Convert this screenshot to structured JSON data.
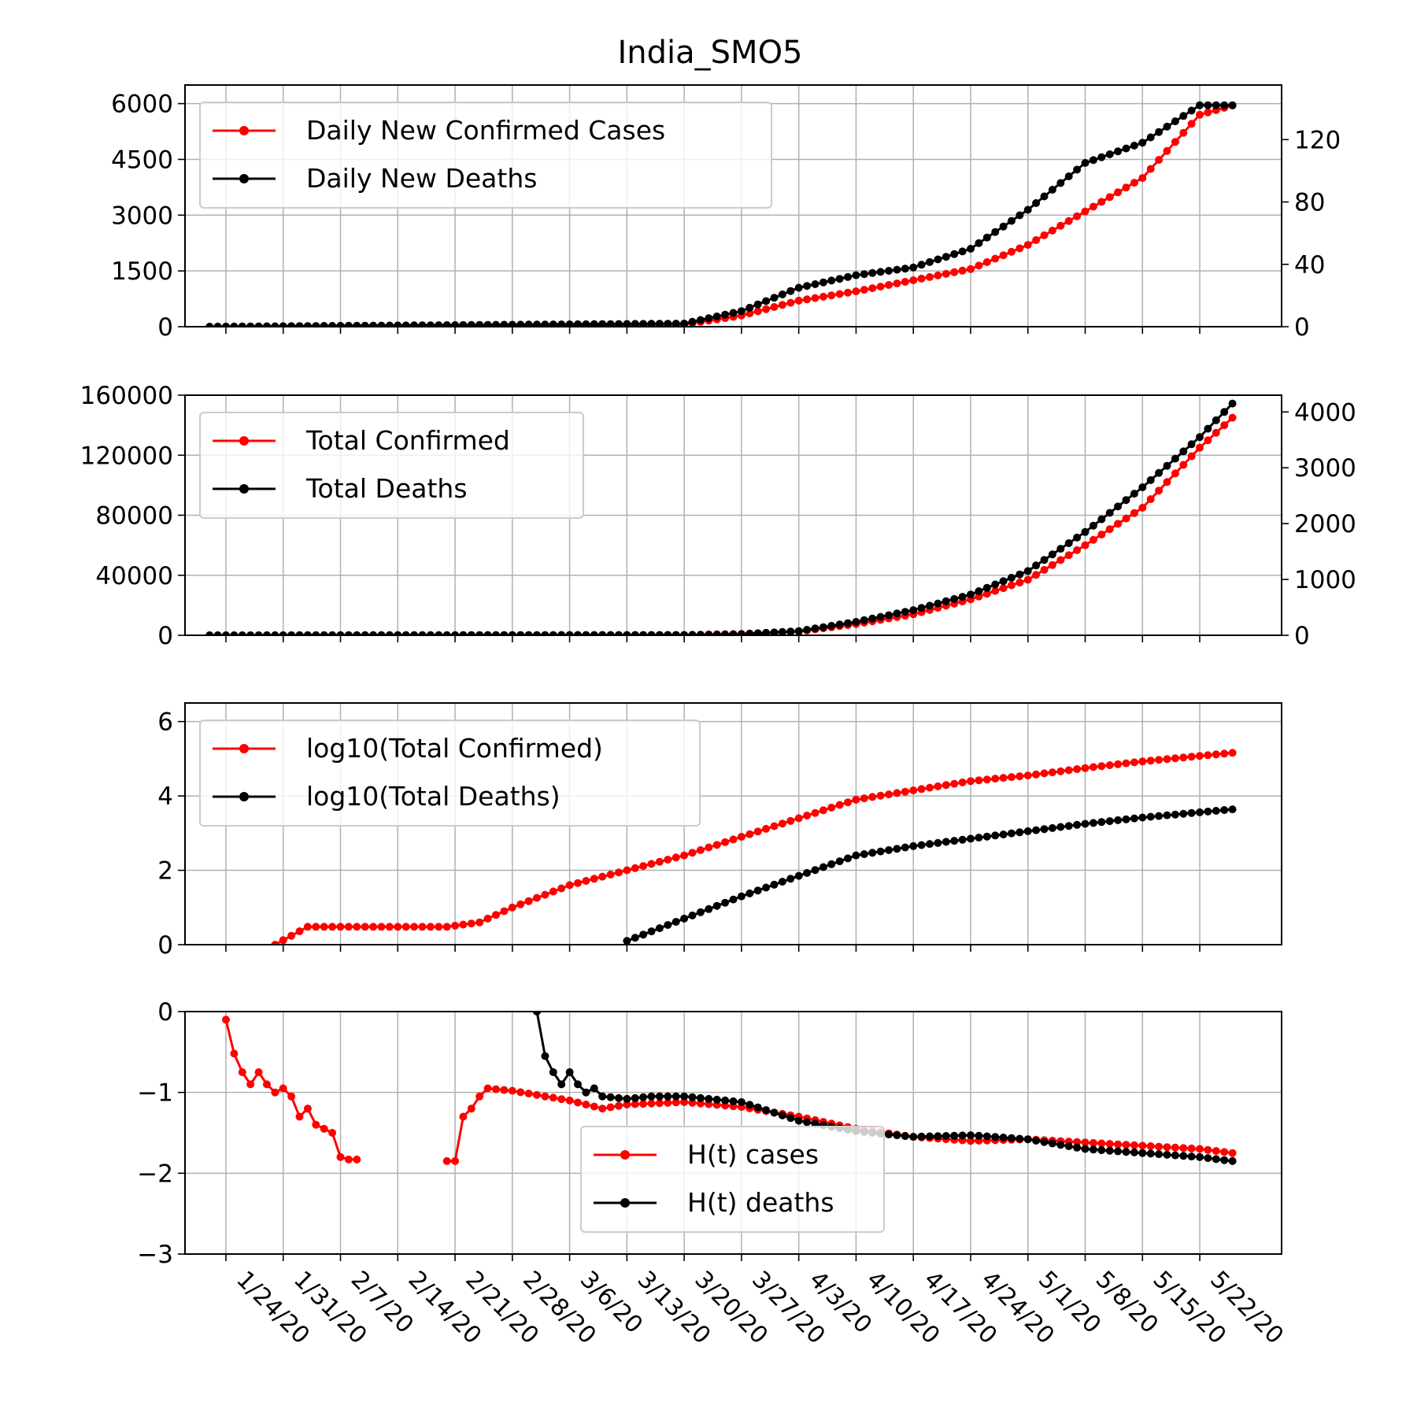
{
  "figure": {
    "title": "India_SMO5",
    "date_ticks": [
      "1/24/20",
      "1/31/20",
      "2/7/20",
      "2/14/20",
      "2/21/20",
      "2/28/20",
      "3/6/20",
      "3/13/20",
      "3/20/20",
      "3/27/20",
      "4/3/20",
      "4/10/20",
      "4/17/20",
      "4/24/20",
      "5/1/20",
      "5/8/20",
      "5/15/20",
      "5/22/20"
    ],
    "colors": {
      "cases": "#ff0000",
      "deaths": "#000000",
      "grid": "#b0b0b0"
    }
  },
  "chart_data": [
    {
      "type": "line",
      "title": "India_SMO5",
      "x_start": "1/22/20",
      "x_end": "5/26/20",
      "left_ylim": [
        0,
        6500
      ],
      "left_yticks": [
        "0",
        "1500",
        "3000",
        "4500",
        "6000"
      ],
      "right_ylim": [
        0,
        155
      ],
      "right_yticks": [
        "0",
        "40",
        "80",
        "120"
      ],
      "legend_position": "upper-left",
      "series": [
        {
          "name": "Daily New Confirmed Cases",
          "axis": "left",
          "color": "#ff0000",
          "points": [
            [
              "1/22/20",
              0
            ],
            [
              "3/20/20",
              60
            ],
            [
              "3/27/20",
              300
            ],
            [
              "4/3/20",
              700
            ],
            [
              "4/10/20",
              950
            ],
            [
              "4/17/20",
              1250
            ],
            [
              "4/24/20",
              1550
            ],
            [
              "5/1/20",
              2200
            ],
            [
              "5/8/20",
              3100
            ],
            [
              "5/15/20",
              4000
            ],
            [
              "5/22/20",
              5700
            ],
            [
              "5/26/20",
              5950
            ]
          ]
        },
        {
          "name": "Daily New Deaths",
          "axis": "right",
          "color": "#000000",
          "points": [
            [
              "1/22/20",
              0
            ],
            [
              "3/20/20",
              2
            ],
            [
              "3/27/20",
              10
            ],
            [
              "4/3/20",
              25
            ],
            [
              "4/10/20",
              33
            ],
            [
              "4/17/20",
              38
            ],
            [
              "4/24/20",
              50
            ],
            [
              "5/1/20",
              75
            ],
            [
              "5/8/20",
              105
            ],
            [
              "5/15/20",
              118
            ],
            [
              "5/22/20",
              142
            ],
            [
              "5/26/20",
              142
            ]
          ]
        }
      ]
    },
    {
      "type": "line",
      "left_ylim": [
        0,
        160000
      ],
      "left_yticks": [
        "0",
        "40000",
        "80000",
        "120000",
        "160000"
      ],
      "right_ylim": [
        0,
        4300
      ],
      "right_yticks": [
        "0",
        "1000",
        "2000",
        "3000",
        "4000"
      ],
      "legend_position": "upper-left",
      "series": [
        {
          "name": "Total Confirmed",
          "axis": "left",
          "color": "#ff0000",
          "points": [
            [
              "1/22/20",
              0
            ],
            [
              "3/20/20",
              250
            ],
            [
              "3/27/20",
              900
            ],
            [
              "4/3/20",
              2500
            ],
            [
              "4/10/20",
              7500
            ],
            [
              "4/17/20",
              14000
            ],
            [
              "4/24/20",
              24000
            ],
            [
              "5/1/20",
              37000
            ],
            [
              "5/8/20",
              60000
            ],
            [
              "5/15/20",
              85000
            ],
            [
              "5/22/20",
              125000
            ],
            [
              "5/26/20",
              145000
            ]
          ]
        },
        {
          "name": "Total Deaths",
          "axis": "right",
          "color": "#000000",
          "points": [
            [
              "1/22/20",
              0
            ],
            [
              "3/20/20",
              4
            ],
            [
              "3/27/20",
              20
            ],
            [
              "4/3/20",
              75
            ],
            [
              "4/10/20",
              240
            ],
            [
              "4/17/20",
              450
            ],
            [
              "4/24/20",
              730
            ],
            [
              "5/1/20",
              1150
            ],
            [
              "5/8/20",
              1850
            ],
            [
              "5/15/20",
              2650
            ],
            [
              "5/22/20",
              3550
            ],
            [
              "5/26/20",
              4150
            ]
          ]
        }
      ]
    },
    {
      "type": "line",
      "ylim": [
        0,
        6.5
      ],
      "yticks": [
        "0",
        "2",
        "4",
        "6"
      ],
      "legend_position": "upper-left",
      "series": [
        {
          "name": "log10(Total Confirmed)",
          "color": "#ff0000",
          "points": [
            [
              "1/30/20",
              0
            ],
            [
              "2/3/20",
              0.48
            ],
            [
              "2/20/20",
              0.48
            ],
            [
              "2/24/20",
              0.6
            ],
            [
              "2/28/20",
              1.0
            ],
            [
              "3/6/20",
              1.6
            ],
            [
              "3/13/20",
              2.0
            ],
            [
              "3/20/20",
              2.4
            ],
            [
              "3/27/20",
              2.9
            ],
            [
              "4/3/20",
              3.4
            ],
            [
              "4/10/20",
              3.9
            ],
            [
              "4/17/20",
              4.15
            ],
            [
              "4/24/20",
              4.4
            ],
            [
              "5/1/20",
              4.55
            ],
            [
              "5/8/20",
              4.75
            ],
            [
              "5/15/20",
              4.93
            ],
            [
              "5/26/20",
              5.16
            ]
          ]
        },
        {
          "name": "log10(Total Deaths)",
          "color": "#000000",
          "points": [
            [
              "3/13/20",
              0.1
            ],
            [
              "3/20/20",
              0.7
            ],
            [
              "3/27/20",
              1.3
            ],
            [
              "4/3/20",
              1.85
            ],
            [
              "4/10/20",
              2.4
            ],
            [
              "4/17/20",
              2.65
            ],
            [
              "4/24/20",
              2.85
            ],
            [
              "5/1/20",
              3.05
            ],
            [
              "5/8/20",
              3.25
            ],
            [
              "5/15/20",
              3.42
            ],
            [
              "5/26/20",
              3.64
            ]
          ]
        }
      ]
    },
    {
      "type": "line",
      "ylim": [
        -3,
        0
      ],
      "yticks": [
        "−3",
        "−2",
        "−1",
        "0"
      ],
      "legend_position": "lower-center",
      "series": [
        {
          "name": "H(t) cases",
          "color": "#ff0000",
          "segments": [
            [
              [
                "1/24/20",
                -0.1
              ],
              [
                "1/25/20",
                -0.52
              ],
              [
                "1/26/20",
                -0.75
              ],
              [
                "1/27/20",
                -0.9
              ],
              [
                "1/28/20",
                -0.75
              ],
              [
                "1/29/20",
                -0.9
              ],
              [
                "1/30/20",
                -1.0
              ],
              [
                "1/31/20",
                -0.95
              ],
              [
                "2/1/20",
                -1.05
              ],
              [
                "2/2/20",
                -1.3
              ],
              [
                "2/3/20",
                -1.2
              ],
              [
                "2/4/20",
                -1.4
              ],
              [
                "2/5/20",
                -1.45
              ],
              [
                "2/6/20",
                -1.5
              ],
              [
                "2/7/20",
                -1.8
              ],
              [
                "2/8/20",
                -1.83
              ],
              [
                "2/9/20",
                -1.83
              ]
            ],
            [
              [
                "2/20/20",
                -1.85
              ],
              [
                "2/21/20",
                -1.85
              ],
              [
                "2/22/20",
                -1.3
              ],
              [
                "2/23/20",
                -1.2
              ],
              [
                "2/24/20",
                -1.05
              ],
              [
                "2/25/20",
                -0.95
              ],
              [
                "2/28/20",
                -0.98
              ],
              [
                "3/6/20",
                -1.1
              ],
              [
                "3/10/20",
                -1.2
              ],
              [
                "3/13/20",
                -1.15
              ],
              [
                "3/20/20",
                -1.12
              ],
              [
                "3/27/20",
                -1.18
              ],
              [
                "4/3/20",
                -1.3
              ],
              [
                "4/10/20",
                -1.45
              ],
              [
                "4/17/20",
                -1.55
              ],
              [
                "4/24/20",
                -1.6
              ],
              [
                "5/1/20",
                -1.58
              ],
              [
                "5/8/20",
                -1.62
              ],
              [
                "5/15/20",
                -1.66
              ],
              [
                "5/22/20",
                -1.7
              ],
              [
                "5/26/20",
                -1.75
              ]
            ]
          ]
        },
        {
          "name": "H(t) deaths",
          "color": "#000000",
          "segments": [
            [
              [
                "3/2/20",
                0
              ],
              [
                "3/3/20",
                -0.55
              ],
              [
                "3/4/20",
                -0.75
              ],
              [
                "3/5/20",
                -0.9
              ],
              [
                "3/6/20",
                -0.75
              ],
              [
                "3/7/20",
                -0.9
              ],
              [
                "3/8/20",
                -1.0
              ],
              [
                "3/9/20",
                -0.95
              ],
              [
                "3/10/20",
                -1.05
              ],
              [
                "3/13/20",
                -1.08
              ],
              [
                "3/16/20",
                -1.05
              ],
              [
                "3/20/20",
                -1.05
              ],
              [
                "3/27/20",
                -1.12
              ],
              [
                "4/3/20",
                -1.35
              ],
              [
                "4/10/20",
                -1.48
              ],
              [
                "4/17/20",
                -1.55
              ],
              [
                "4/24/20",
                -1.53
              ],
              [
                "5/1/20",
                -1.58
              ],
              [
                "5/8/20",
                -1.7
              ],
              [
                "5/15/20",
                -1.75
              ],
              [
                "5/22/20",
                -1.8
              ],
              [
                "5/26/20",
                -1.85
              ]
            ]
          ]
        }
      ]
    }
  ]
}
